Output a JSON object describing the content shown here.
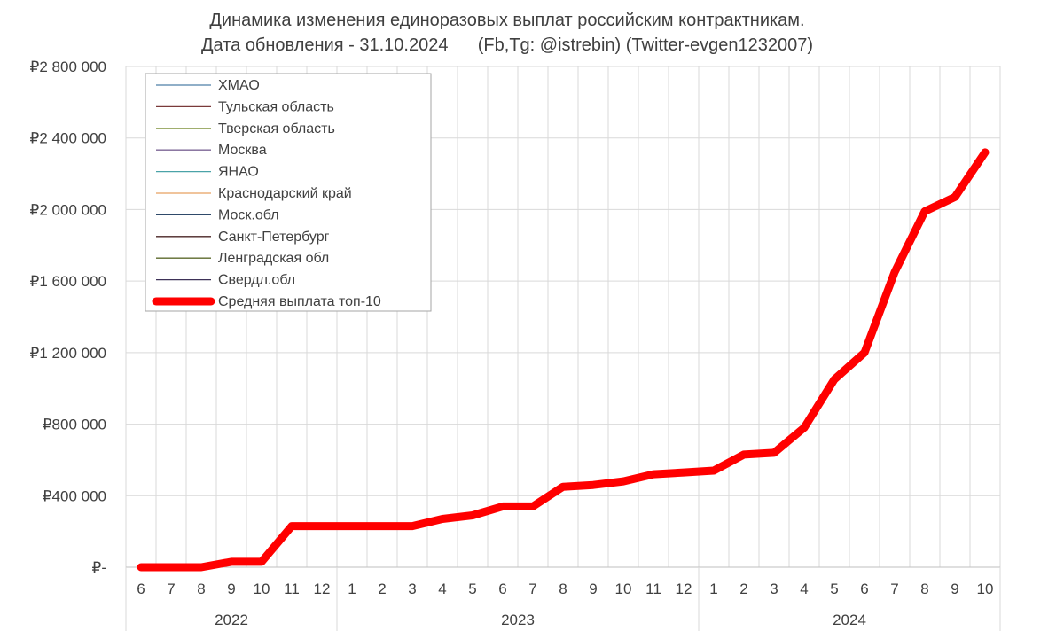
{
  "chart_data": {
    "type": "line",
    "title": "Динамика изменения единоразовых выплат российским контрактникам.",
    "subtitle": "Дата обновления - 31.10.2024      (Fb,Tg: @istrebin) (Twitter-evgen1232007)",
    "y_tick_labels": [
      "₽-",
      "₽400 000",
      "₽800 000",
      "₽1 200 000",
      "₽1 600 000",
      "₽2 000 000",
      "₽2 400 000",
      "₽2 800 000"
    ],
    "y_ticks": [
      0,
      400000,
      800000,
      1200000,
      1600000,
      2000000,
      2400000,
      2800000
    ],
    "ylim": [
      0,
      2800000
    ],
    "grid": true,
    "legend_position": "top-left",
    "categories": [
      "6",
      "7",
      "8",
      "9",
      "10",
      "11",
      "12",
      "1",
      "2",
      "3",
      "4",
      "5",
      "6",
      "7",
      "8",
      "9",
      "10",
      "11",
      "12",
      "1",
      "2",
      "3",
      "4",
      "5",
      "6",
      "7",
      "8",
      "9",
      "10"
    ],
    "year_groups": [
      {
        "label": "2022",
        "start": 0,
        "end": 6
      },
      {
        "label": "2023",
        "start": 7,
        "end": 18
      },
      {
        "label": "2024",
        "start": 19,
        "end": 28
      }
    ],
    "series": [
      {
        "name": "ХМАО",
        "color": "#4e7fa8",
        "width": 1.3,
        "values": [
          null,
          null,
          null,
          null,
          null,
          null,
          null,
          null,
          null,
          null,
          null,
          null,
          null,
          null,
          null,
          null,
          null,
          null,
          null,
          null,
          null,
          null,
          null,
          null,
          null,
          null,
          null,
          null,
          null
        ]
      },
      {
        "name": "Тульская область",
        "color": "#7a3a3a",
        "width": 1.3,
        "values": [
          null,
          null,
          null,
          null,
          null,
          null,
          null,
          null,
          null,
          null,
          null,
          null,
          null,
          null,
          null,
          null,
          null,
          null,
          null,
          null,
          null,
          null,
          null,
          null,
          null,
          null,
          null,
          null,
          null
        ]
      },
      {
        "name": "Тверская область",
        "color": "#93a35a",
        "width": 1.3,
        "values": [
          null,
          null,
          null,
          null,
          null,
          null,
          null,
          null,
          null,
          null,
          null,
          null,
          null,
          null,
          null,
          null,
          null,
          null,
          null,
          null,
          null,
          null,
          null,
          null,
          null,
          null,
          null,
          null,
          null
        ]
      },
      {
        "name": "Москва",
        "color": "#7b6495",
        "width": 1.3,
        "values": [
          null,
          null,
          null,
          null,
          null,
          null,
          null,
          null,
          null,
          null,
          null,
          null,
          null,
          null,
          null,
          null,
          null,
          null,
          null,
          null,
          null,
          null,
          null,
          null,
          null,
          null,
          null,
          null,
          null
        ]
      },
      {
        "name": "ЯНАО",
        "color": "#4aa3a8",
        "width": 1.3,
        "values": [
          null,
          null,
          null,
          null,
          null,
          null,
          null,
          null,
          null,
          null,
          null,
          null,
          null,
          null,
          null,
          null,
          null,
          null,
          null,
          null,
          null,
          null,
          null,
          null,
          null,
          null,
          null,
          null,
          null
        ]
      },
      {
        "name": "Краснодарский край",
        "color": "#e8a060",
        "width": 1.3,
        "values": [
          null,
          null,
          null,
          null,
          null,
          null,
          null,
          null,
          null,
          null,
          null,
          null,
          null,
          null,
          null,
          null,
          null,
          null,
          null,
          null,
          null,
          null,
          null,
          null,
          null,
          null,
          null,
          null,
          null
        ]
      },
      {
        "name": "Моск.обл",
        "color": "#2f4a6a",
        "width": 1.3,
        "values": [
          null,
          null,
          null,
          null,
          null,
          null,
          null,
          null,
          null,
          null,
          null,
          null,
          null,
          null,
          null,
          null,
          null,
          null,
          null,
          null,
          null,
          null,
          null,
          null,
          null,
          null,
          null,
          null,
          null
        ]
      },
      {
        "name": "Санкт-Петербург",
        "color": "#4a2424",
        "width": 1.3,
        "values": [
          null,
          null,
          null,
          null,
          null,
          null,
          null,
          null,
          null,
          null,
          null,
          null,
          null,
          null,
          null,
          null,
          null,
          null,
          null,
          null,
          null,
          null,
          null,
          null,
          null,
          null,
          null,
          null,
          null
        ]
      },
      {
        "name": "Ленградская обл",
        "color": "#5c6a2c",
        "width": 1.3,
        "values": [
          null,
          null,
          null,
          null,
          null,
          null,
          null,
          null,
          null,
          null,
          null,
          null,
          null,
          null,
          null,
          null,
          null,
          null,
          null,
          null,
          null,
          null,
          null,
          null,
          null,
          null,
          null,
          null,
          null
        ]
      },
      {
        "name": "Свердл.обл",
        "color": "#3e3258",
        "width": 1.3,
        "values": [
          null,
          null,
          null,
          null,
          null,
          null,
          null,
          null,
          null,
          null,
          null,
          null,
          null,
          null,
          null,
          null,
          null,
          null,
          null,
          null,
          null,
          null,
          null,
          null,
          null,
          null,
          null,
          null,
          null
        ]
      },
      {
        "name": "Средняя выплата топ-10",
        "color": "#ff0000",
        "width": 9,
        "values": [
          0,
          0,
          0,
          30000,
          30000,
          230000,
          230000,
          230000,
          230000,
          230000,
          270000,
          290000,
          340000,
          340000,
          450000,
          460000,
          480000,
          520000,
          530000,
          540000,
          630000,
          640000,
          780000,
          1050000,
          1200000,
          1650000,
          1990000,
          2070000,
          2320000
        ]
      }
    ]
  }
}
